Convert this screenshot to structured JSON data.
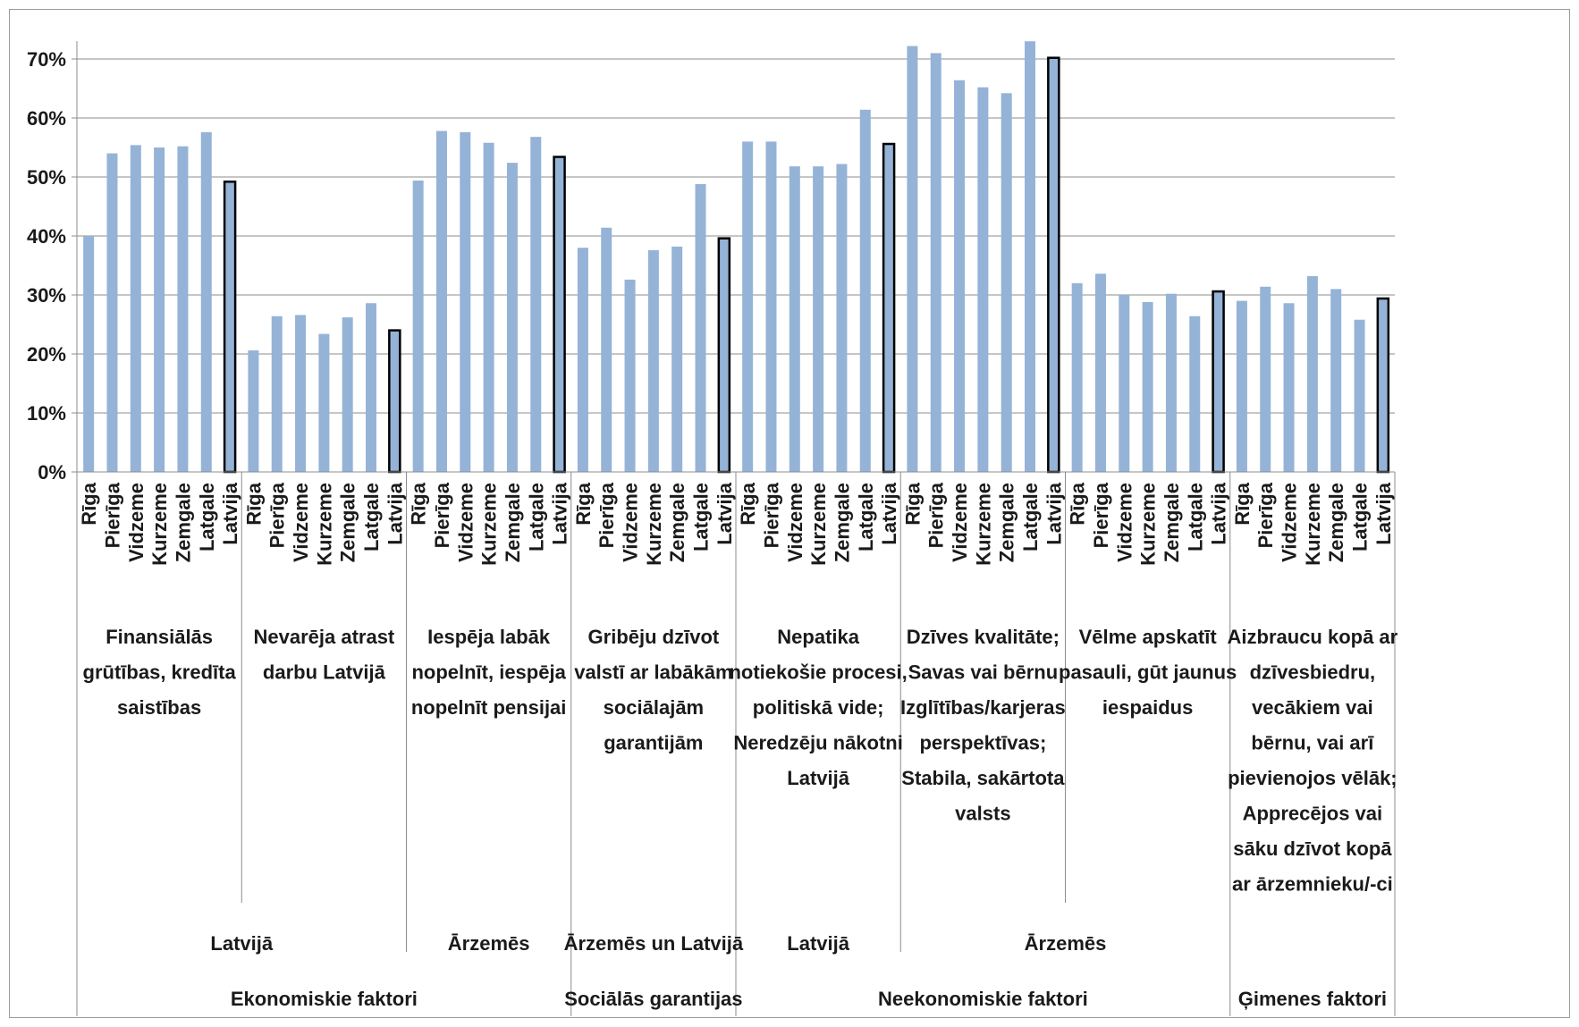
{
  "chart_data": {
    "type": "bar",
    "ylim": [
      0,
      0.7
    ],
    "y_ticks": [
      "0%",
      "10%",
      "20%",
      "30%",
      "40%",
      "50%",
      "60%",
      "70%"
    ],
    "grid": true,
    "bar_color": "#95B3D7",
    "highlight_outline_color": "#000000",
    "groups": [
      {
        "label": "Finansiālās grūtības, kredīta saistības",
        "label_lines": [
          "Finansiālās",
          "grūtības, kredīta",
          "saistības"
        ],
        "categories": [
          "Rīga",
          "Pierīga",
          "Vidzeme",
          "Kurzeme",
          "Zemgale",
          "Latgale",
          "Latvija"
        ],
        "values": [
          0.4,
          0.54,
          0.554,
          0.55,
          0.552,
          0.576,
          0.492
        ]
      },
      {
        "label": "Nevarēja atrast darbu Latvijā",
        "label_lines": [
          "Nevarēja atrast",
          "darbu Latvijā"
        ],
        "categories": [
          "Rīga",
          "Pierīga",
          "Vidzeme",
          "Kurzeme",
          "Zemgale",
          "Latgale",
          "Latvija"
        ],
        "values": [
          0.206,
          0.264,
          0.266,
          0.234,
          0.262,
          0.286,
          0.24
        ]
      },
      {
        "label": "Iespēja labāk nopelnīt, iespēja nopelnīt pensijai",
        "label_lines": [
          "Iespēja labāk",
          "nopelnīt, iespēja",
          "nopelnīt pensijai"
        ],
        "categories": [
          "Rīga",
          "Pierīga",
          "Vidzeme",
          "Kurzeme",
          "Zemgale",
          "Latgale",
          "Latvija"
        ],
        "values": [
          0.494,
          0.578,
          0.576,
          0.558,
          0.524,
          0.568,
          0.534
        ]
      },
      {
        "label": "Gribēju dzīvot valstī ar labākām sociālajām garantijām",
        "label_lines": [
          "Gribēju dzīvot",
          "valstī ar labākām",
          "sociālajām",
          "garantijām"
        ],
        "categories": [
          "Rīga",
          "Pierīga",
          "Vidzeme",
          "Kurzeme",
          "Zemgale",
          "Latgale",
          "Latvija"
        ],
        "values": [
          0.38,
          0.414,
          0.326,
          0.376,
          0.382,
          0.488,
          0.396
        ]
      },
      {
        "label": "Nepatika notiekošie procesi, politiskā vide; Neredzēju nākotni Latvijā",
        "label_lines": [
          "Nepatika",
          "notiekošie procesi,",
          "politiskā vide;",
          "Neredzēju nākotni",
          "Latvijā"
        ],
        "categories": [
          "Rīga",
          "Pierīga",
          "Vidzeme",
          "Kurzeme",
          "Zemgale",
          "Latgale",
          "Latvija"
        ],
        "values": [
          0.56,
          0.56,
          0.518,
          0.518,
          0.522,
          0.614,
          0.556
        ]
      },
      {
        "label": "Dzīves kvalitāte; Savas vai bērnu Izglītības/karjeras perspektīvas; Stabila, sakārtota valsts",
        "label_lines": [
          "Dzīves kvalitāte;",
          "Savas vai bērnu",
          "Izglītības/karjeras",
          "perspektīvas;",
          "Stabila, sakārtota",
          "valsts"
        ],
        "categories": [
          "Rīga",
          "Pierīga",
          "Vidzeme",
          "Kurzeme",
          "Zemgale",
          "Latgale",
          "Latvija"
        ],
        "values": [
          0.722,
          0.71,
          0.664,
          0.652,
          0.642,
          0.73,
          0.702
        ]
      },
      {
        "label": "Vēlme apskatīt pasauli, gūt jaunus iespaidus",
        "label_lines": [
          "Vēlme apskatīt",
          "pasauli, gūt jaunus",
          "iespaidus"
        ],
        "categories": [
          "Rīga",
          "Pierīga",
          "Vidzeme",
          "Kurzeme",
          "Zemgale",
          "Latgale",
          "Latvija"
        ],
        "values": [
          0.32,
          0.336,
          0.3,
          0.288,
          0.302,
          0.264,
          0.306
        ]
      },
      {
        "label": "Aizbraucu kopā ar dzīvesbiedru, vecākiem vai bērnu, vai arī pievienojos vēlāk; Apprecējos vai sāku dzīvot kopā ar ārzemnieku/-ci",
        "label_lines": [
          "Aizbraucu kopā ar",
          "dzīvesbiedru,",
          "vecākiem vai",
          "bērnu, vai arī",
          "pievienojos vēlāk;",
          "Apprecējos vai",
          "sāku dzīvot kopā",
          "ar ārzemnieku/-ci"
        ],
        "categories": [
          "Rīga",
          "Pierīga",
          "Vidzeme",
          "Kurzeme",
          "Zemgale",
          "Latgale",
          "Latvija"
        ],
        "values": [
          0.29,
          0.314,
          0.286,
          0.332,
          0.31,
          0.258,
          0.294
        ]
      }
    ],
    "level2": [
      {
        "label": "Latvijā",
        "span": [
          0,
          1
        ]
      },
      {
        "label": "Ārzemēs",
        "span": [
          2,
          2
        ]
      },
      {
        "label": "Ārzemēs un Latvijā",
        "span": [
          3,
          3
        ]
      },
      {
        "label": "Latvijā",
        "span": [
          4,
          4
        ]
      },
      {
        "label": "Ārzemēs",
        "span": [
          5,
          6
        ]
      },
      {
        "label": "",
        "span": [
          7,
          7
        ]
      }
    ],
    "level3": [
      {
        "label": "Ekonomiskie faktori",
        "span": [
          0,
          2
        ]
      },
      {
        "label": "Sociālās garantijas",
        "span": [
          3,
          3
        ]
      },
      {
        "label": "Neekonomiskie faktori",
        "span": [
          4,
          6
        ]
      },
      {
        "label": "Ģimenes faktori",
        "span": [
          7,
          7
        ]
      }
    ]
  }
}
